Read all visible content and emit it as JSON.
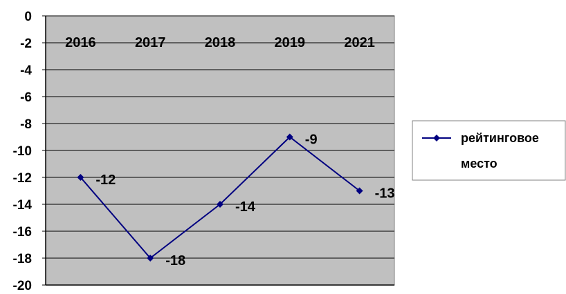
{
  "chart_data": {
    "type": "line",
    "title": "",
    "xlabel": "",
    "ylabel": "",
    "categories": [
      "2016",
      "2017",
      "2018",
      "2019",
      "2021"
    ],
    "series": [
      {
        "name": "рейтинговое место",
        "values": [
          -12,
          -18,
          -14,
          -9,
          -13
        ],
        "data_labels": [
          "-12",
          "-18",
          "-14",
          "-9",
          "-13"
        ],
        "color": "#000080",
        "marker": "diamond"
      }
    ],
    "ylim": [
      -20,
      0
    ],
    "y_step": 2,
    "y_tick_labels": [
      "0",
      "-2",
      "-4",
      "-6",
      "-8",
      "-10",
      "-12",
      "-14",
      "-16",
      "-18",
      "-20"
    ],
    "x_axis_labels_position": "top",
    "grid": true,
    "plot_background": "#c0c0c0",
    "legend": {
      "position": "right",
      "line1": "рейтинговое",
      "line2": "место"
    }
  }
}
